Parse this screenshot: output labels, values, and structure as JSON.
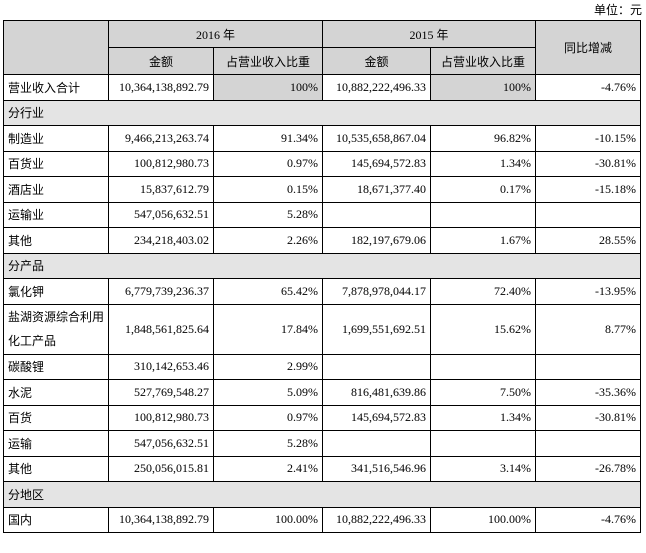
{
  "unit": "单位：元",
  "table": {
    "header": {
      "year_2016": "2016 年",
      "year_2015": "2015 年",
      "change": "同比增减",
      "amount_2016": "金额",
      "share_2016": "占营业收入比重",
      "amount_2015": "金额",
      "share_2015": "占营业收入比重"
    },
    "rows": [
      [
        "营业收入合计",
        "10,364,138,892.79",
        "100%",
        "10,882,222,496.33",
        "100%",
        "-4.76%"
      ],
      [
        "分行业"
      ],
      [
        "制造业",
        "9,466,213,263.74",
        "91.34%",
        "10,535,658,867.04",
        "96.82%",
        "-10.15%"
      ],
      [
        "百货业",
        "100,812,980.73",
        "0.97%",
        "145,694,572.83",
        "1.34%",
        "-30.81%"
      ],
      [
        "酒店业",
        "15,837,612.79",
        "0.15%",
        "18,671,377.40",
        "0.17%",
        "-15.18%"
      ],
      [
        "运输业",
        "547,056,632.51",
        "5.28%",
        null,
        null,
        null
      ],
      [
        "其他",
        "234,218,403.02",
        "2.26%",
        "182,197,679.06",
        "1.67%",
        "28.55%"
      ],
      [
        "分产品"
      ],
      [
        "氯化钾",
        "6,779,739,236.37",
        "65.42%",
        "7,878,978,044.17",
        "72.40%",
        "-13.95%"
      ],
      [
        "盐湖资源综合利用化工产品",
        "1,848,561,825.64",
        "17.84%",
        "1,699,551,692.51",
        "15.62%",
        "8.77%"
      ],
      [
        "碳酸锂",
        "310,142,653.46",
        "2.99%",
        null,
        null,
        null
      ],
      [
        "水泥",
        "527,769,548.27",
        "5.09%",
        "816,481,639.86",
        "7.50%",
        "-35.36%"
      ],
      [
        "百货",
        "100,812,980.73",
        "0.97%",
        "145,694,572.83",
        "1.34%",
        "-30.81%"
      ],
      [
        "运输",
        "547,056,632.51",
        "5.28%",
        null,
        null,
        null
      ],
      [
        "其他",
        "250,056,015.81",
        "2.41%",
        "341,516,546.96",
        "3.14%",
        "-26.78%"
      ],
      [
        "分地区"
      ],
      [
        "国内",
        "10,364,138,892.79",
        "100.00%",
        "10,882,222,496.33",
        "100.00%",
        "-4.76%"
      ]
    ]
  }
}
